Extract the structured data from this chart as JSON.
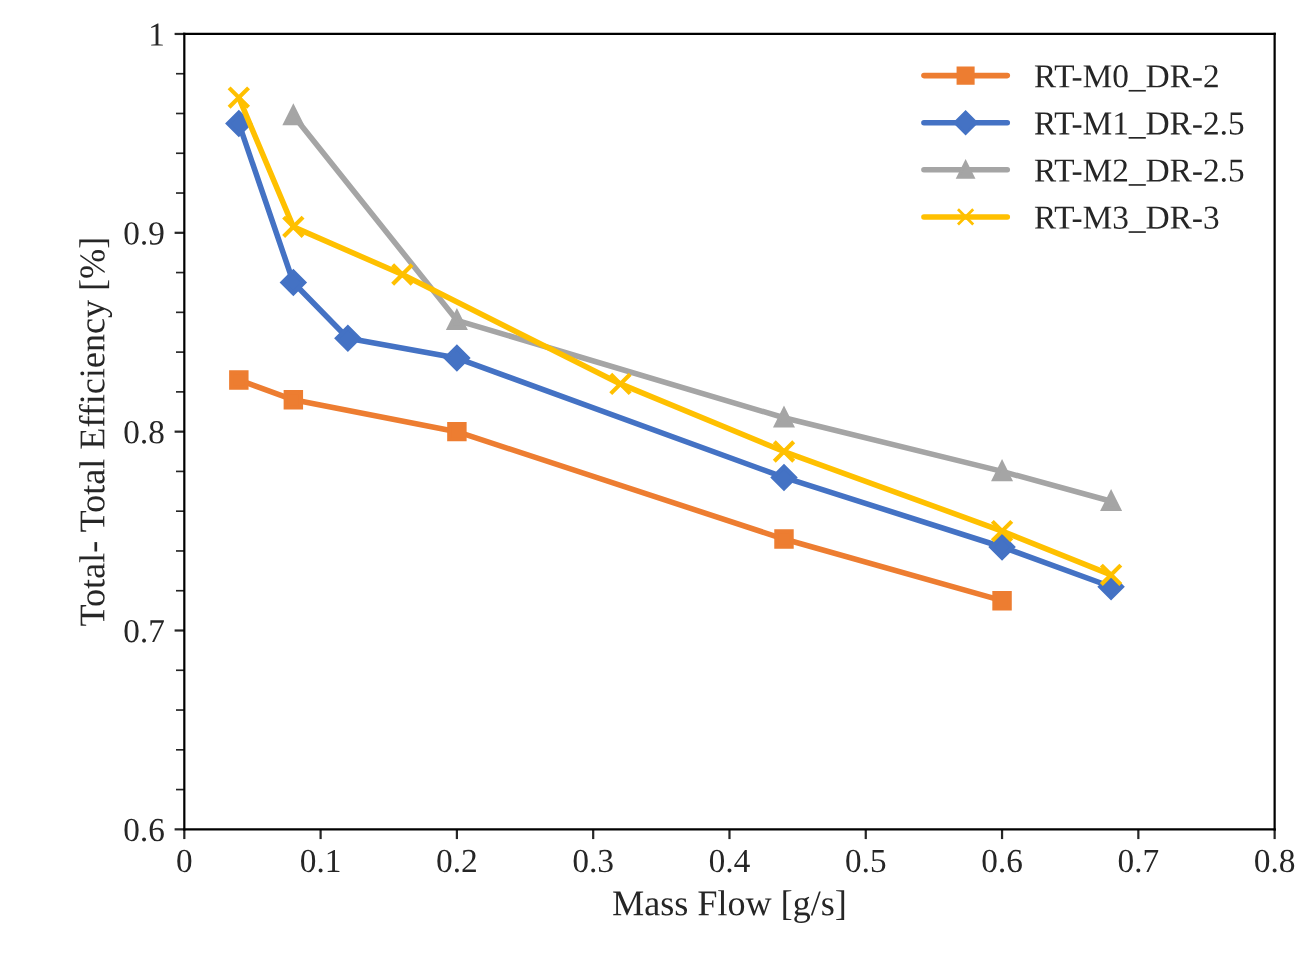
{
  "chart_data": {
    "type": "line",
    "xlabel": "Mass Flow [g/s]",
    "ylabel": "Total- Total Efficiency [%]",
    "xlim": [
      0,
      0.8
    ],
    "xticks": [
      0,
      0.1,
      0.2,
      0.3,
      0.4,
      0.5,
      0.6,
      0.7,
      0.8
    ],
    "ylim": [
      0.6,
      1
    ],
    "yticks": [
      0.6,
      0.7,
      0.8,
      0.9,
      1
    ],
    "grid": false,
    "legend": "top right",
    "series": [
      {
        "name": "RT-M0_DR-2",
        "color": "#ed7d31",
        "marker": "square",
        "x": [
          0.04,
          0.08,
          0.2,
          0.44,
          0.6
        ],
        "values": [
          0.826,
          0.816,
          0.8,
          0.746,
          0.715
        ]
      },
      {
        "name": "RT-M1_DR-2.5",
        "color": "#4472c4",
        "marker": "diamond",
        "x": [
          0.04,
          0.08,
          0.12,
          0.2,
          0.44,
          0.6,
          0.68
        ],
        "values": [
          0.955,
          0.875,
          0.847,
          0.837,
          0.777,
          0.742,
          0.722
        ]
      },
      {
        "name": "RT-M2_DR-2.5",
        "color": "#a5a5a5",
        "marker": "triangle",
        "x": [
          0.08,
          0.2,
          0.44,
          0.6,
          0.68
        ],
        "values": [
          0.959,
          0.856,
          0.807,
          0.78,
          0.765
        ]
      },
      {
        "name": "RT-M3_DR-3",
        "color": "#ffc000",
        "marker": "cross",
        "x": [
          0.04,
          0.08,
          0.16,
          0.32,
          0.44,
          0.6,
          0.68
        ],
        "values": [
          0.968,
          0.903,
          0.879,
          0.824,
          0.79,
          0.75,
          0.728
        ]
      }
    ]
  }
}
